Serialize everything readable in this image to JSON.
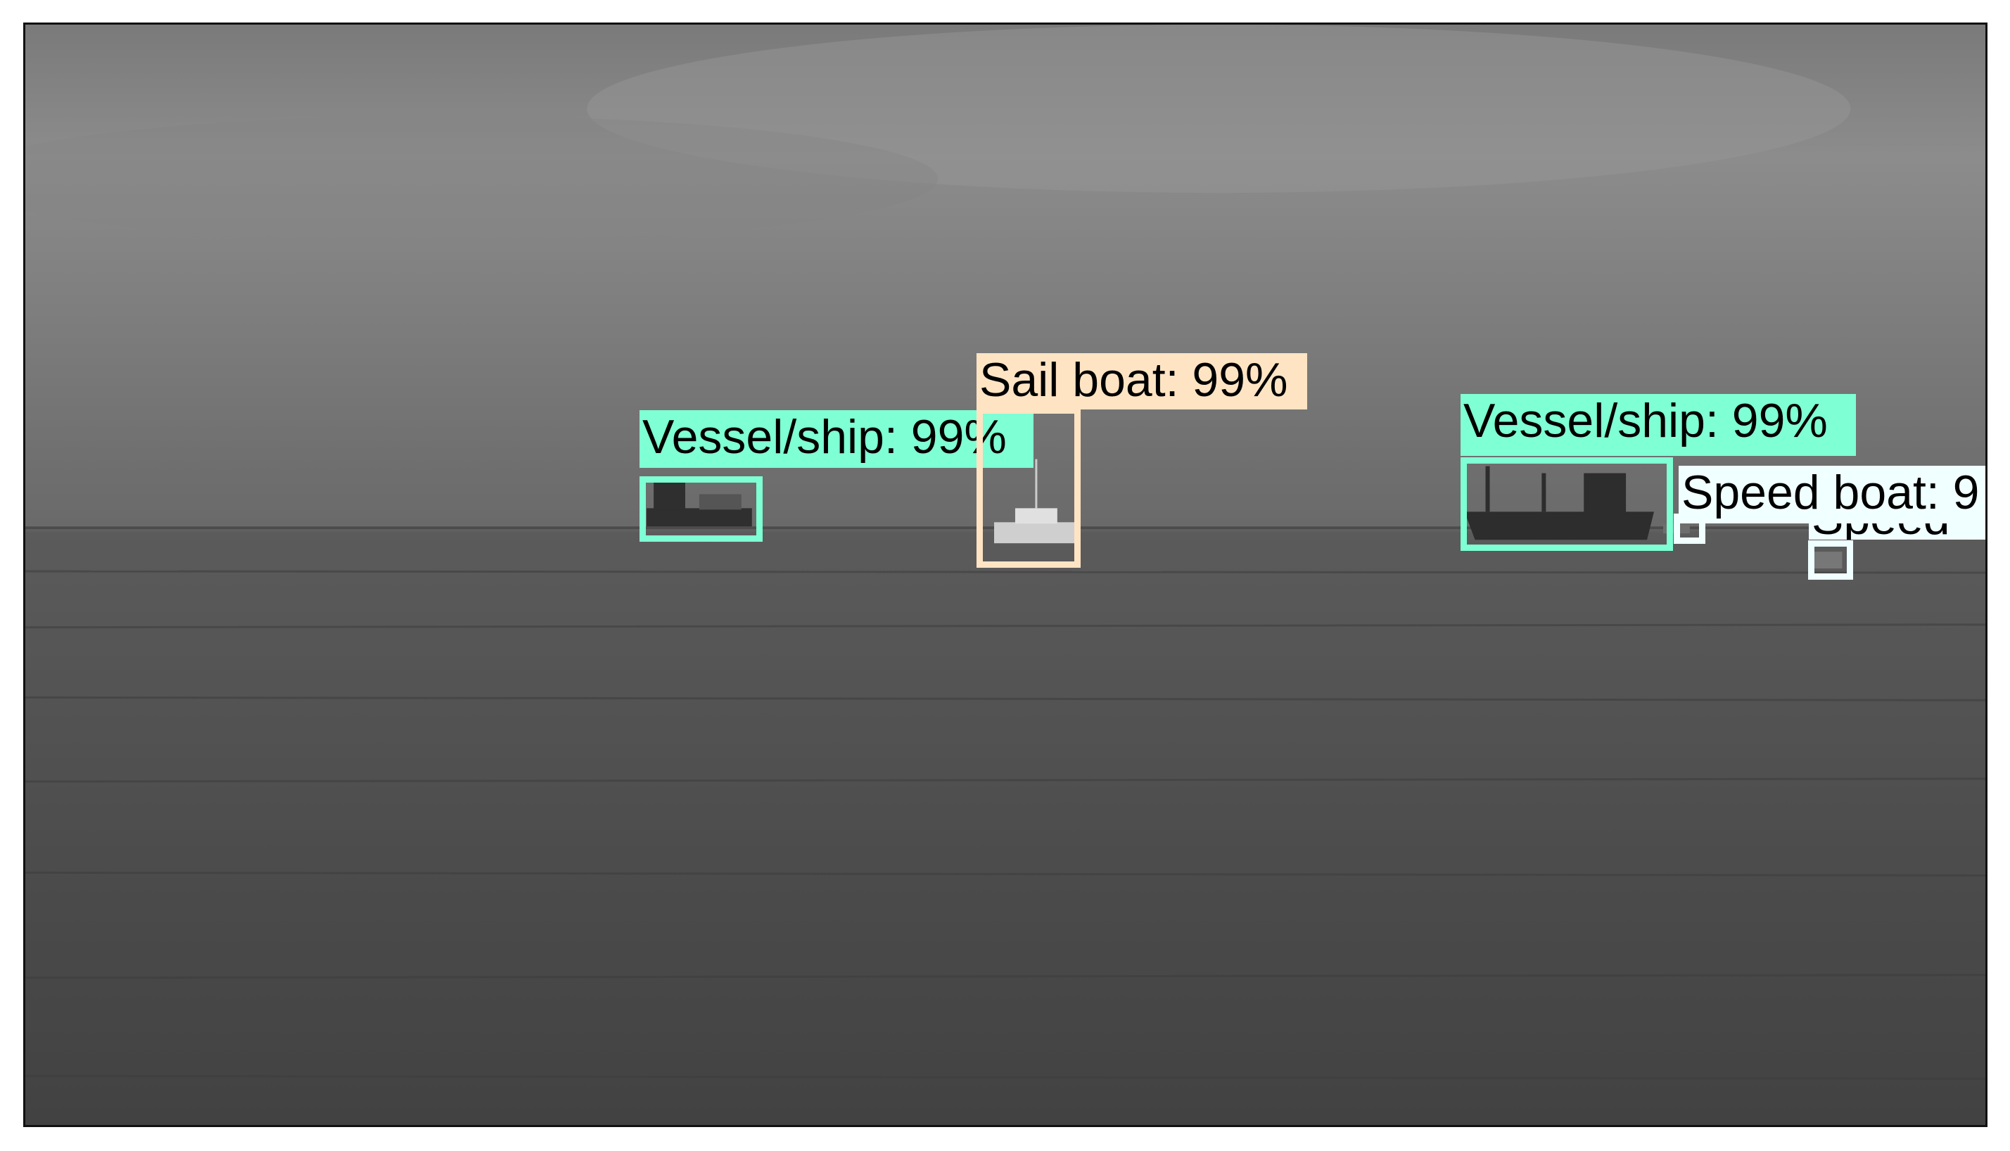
{
  "colors": {
    "vessel": "#7fffd4",
    "sail": "#ffe4c4",
    "speed": "#f0ffff"
  },
  "detections": [
    {
      "label": "Vessel/ship: 99%",
      "category": "vessel"
    },
    {
      "label": "Sail boat: 99%",
      "category": "sail"
    },
    {
      "label": "Vessel/ship: 99%",
      "category": "vessel"
    },
    {
      "label": "Speed boat: 9",
      "category": "speed"
    },
    {
      "label": "Speed",
      "category": "speed"
    }
  ]
}
